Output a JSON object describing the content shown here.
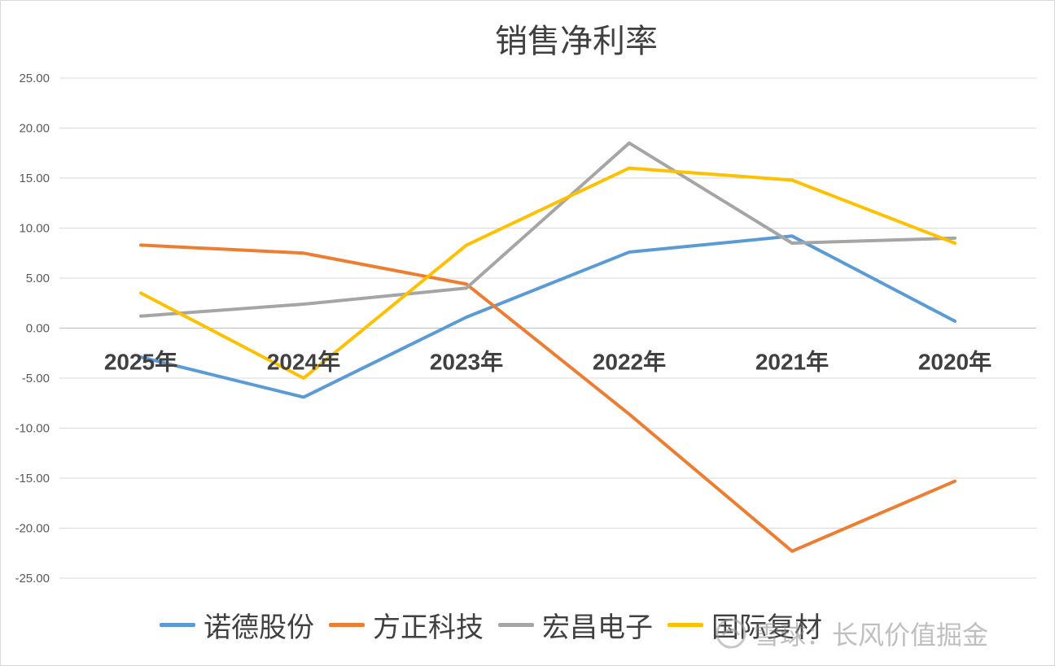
{
  "chart_data": {
    "type": "line",
    "title": "销售净利率",
    "categories": [
      "2025年",
      "2024年",
      "2023年",
      "2022年",
      "2021年",
      "2020年"
    ],
    "ylim": [
      -25,
      25
    ],
    "yticks": [
      "25.00",
      "20.00",
      "15.00",
      "10.00",
      "5.00",
      "0.00",
      "-5.00",
      "-10.00",
      "-15.00",
      "-20.00",
      "-25.00"
    ],
    "ytick_values": [
      25,
      20,
      15,
      10,
      5,
      0,
      -5,
      -10,
      -15,
      -20,
      -25
    ],
    "grid": true,
    "legend_position": "bottom",
    "series": [
      {
        "name": "诺德股份",
        "color": "#5b9bd5",
        "values": [
          -2.9,
          -6.9,
          1.1,
          7.6,
          9.2,
          0.7
        ]
      },
      {
        "name": "方正科技",
        "color": "#ed7d31",
        "values": [
          8.3,
          7.5,
          4.4,
          -8.6,
          -22.3,
          -15.3
        ]
      },
      {
        "name": "宏昌电子",
        "color": "#a5a5a5",
        "values": [
          1.2,
          2.4,
          4.0,
          18.5,
          8.5,
          9.0
        ]
      },
      {
        "name": "国际复材",
        "color": "#ffc000",
        "values": [
          3.5,
          -5.0,
          8.3,
          16.0,
          14.8,
          8.5
        ]
      }
    ]
  },
  "watermark": {
    "text": "雪球：长风价值掘金",
    "icon": "snowball-logo-icon"
  }
}
